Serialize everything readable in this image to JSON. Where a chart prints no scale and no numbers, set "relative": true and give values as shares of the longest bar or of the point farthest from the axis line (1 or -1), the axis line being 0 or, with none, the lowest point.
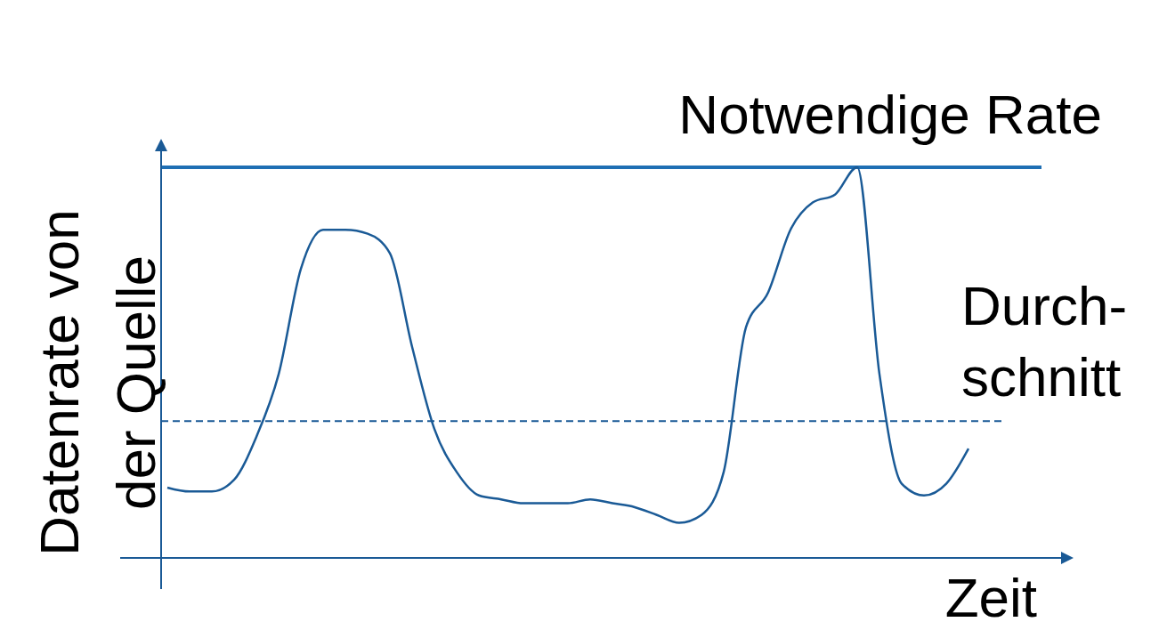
{
  "chart_data": {
    "type": "line",
    "relative": true,
    "xlabel": "Zeit",
    "ylabel": "Datenrate von\nder Quelle",
    "categories": [
      null,
      null,
      null,
      null,
      null,
      null,
      null,
      null,
      null,
      null,
      null,
      null,
      null,
      null,
      null,
      null,
      null,
      null,
      null,
      null,
      null,
      null,
      null,
      null,
      null,
      null,
      null,
      null,
      null,
      null,
      null,
      null,
      null,
      null,
      null,
      null,
      null
    ],
    "series": [
      {
        "color": "#1a5a96",
        "values": [
          0.18,
          0.17,
          0.17,
          0.2,
          0.31,
          0.47,
          0.74,
          0.84,
          0.84,
          0.83,
          0.78,
          0.54,
          0.33,
          0.22,
          0.16,
          0.15,
          0.14,
          0.14,
          0.14,
          0.15,
          0.14,
          0.13,
          0.11,
          0.09,
          0.11,
          0.22,
          0.59,
          0.68,
          0.84,
          0.91,
          0.93,
          1,
          0.47,
          0.19,
          0.16,
          0.19,
          0.28
        ]
      }
    ],
    "ref_lines": [
      {
        "axis": "y",
        "value": 1,
        "label": "Notwendige Rate",
        "color": "#1f6fb4",
        "line_style": "solid"
      },
      {
        "axis": "y",
        "value": 0.35,
        "label": "Durch-\nschnitt",
        "color": "#1a5a96",
        "line_style": "dashed"
      }
    ],
    "marker": "none"
  }
}
